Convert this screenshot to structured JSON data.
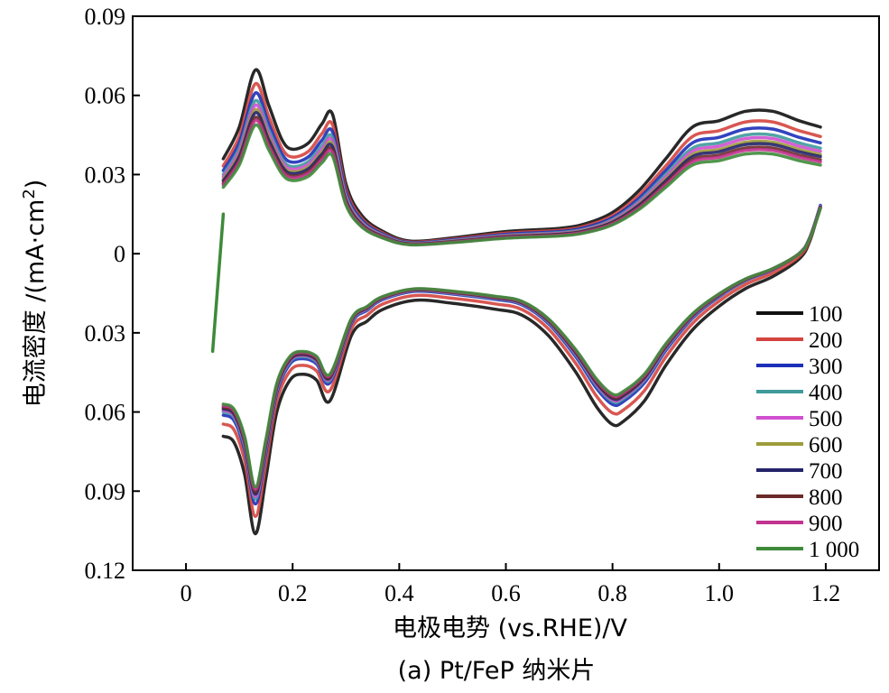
{
  "chart_data": {
    "type": "line",
    "xlabel": "电极电势 (vs.RHE)/V",
    "ylabel_main": "电流密度 /(mA·cm",
    "ylabel_sup": "2",
    "ylabel_close": ")",
    "caption": "(a) Pt/FeP 纳米片",
    "xlim": [
      -0.1,
      1.3
    ],
    "ylim": [
      -0.12,
      0.09
    ],
    "x_ticks": [
      0,
      0.2,
      0.4,
      0.6,
      0.8,
      1.0,
      1.2
    ],
    "x_tick_labels": [
      "0",
      "0.2",
      "0.4",
      "0.6",
      "0.8",
      "1.0",
      "1.2"
    ],
    "y_ticks": [
      0.09,
      0.06,
      0.03,
      0,
      -0.03,
      -0.06,
      -0.09,
      -0.12
    ],
    "y_tick_labels": [
      "0.09",
      "0.06",
      "0.03",
      "0",
      "0.03",
      "0.06",
      "0.09",
      "0.12"
    ],
    "legend_position": "right",
    "grid": false,
    "base_anodic": [
      [
        0.07,
        0.03
      ],
      [
        0.1,
        0.04
      ],
      [
        0.13,
        0.058
      ],
      [
        0.155,
        0.047
      ],
      [
        0.18,
        0.036
      ],
      [
        0.2,
        0.033
      ],
      [
        0.23,
        0.035
      ],
      [
        0.255,
        0.041
      ],
      [
        0.275,
        0.044
      ],
      [
        0.3,
        0.022
      ],
      [
        0.33,
        0.012
      ],
      [
        0.37,
        0.007
      ],
      [
        0.42,
        0.004
      ],
      [
        0.5,
        0.005
      ],
      [
        0.6,
        0.007
      ],
      [
        0.7,
        0.008
      ],
      [
        0.75,
        0.0095
      ],
      [
        0.8,
        0.013
      ],
      [
        0.85,
        0.02
      ],
      [
        0.9,
        0.03
      ],
      [
        0.95,
        0.04
      ],
      [
        1.0,
        0.042
      ],
      [
        1.05,
        0.045
      ],
      [
        1.1,
        0.045
      ],
      [
        1.15,
        0.042
      ],
      [
        1.19,
        0.04
      ]
    ],
    "base_cathodic": [
      [
        1.19,
        0.018
      ],
      [
        1.17,
        0.006
      ],
      [
        1.15,
        0.0
      ],
      [
        1.1,
        -0.006
      ],
      [
        1.05,
        -0.01
      ],
      [
        1.0,
        -0.016
      ],
      [
        0.95,
        -0.024
      ],
      [
        0.9,
        -0.036
      ],
      [
        0.86,
        -0.048
      ],
      [
        0.82,
        -0.055
      ],
      [
        0.8,
        -0.056
      ],
      [
        0.77,
        -0.05
      ],
      [
        0.73,
        -0.038
      ],
      [
        0.68,
        -0.026
      ],
      [
        0.63,
        -0.019
      ],
      [
        0.58,
        -0.017
      ],
      [
        0.5,
        -0.015
      ],
      [
        0.43,
        -0.014
      ],
      [
        0.37,
        -0.017
      ],
      [
        0.34,
        -0.021
      ],
      [
        0.31,
        -0.026
      ],
      [
        0.27,
        -0.048
      ],
      [
        0.245,
        -0.041
      ],
      [
        0.22,
        -0.039
      ],
      [
        0.195,
        -0.041
      ],
      [
        0.17,
        -0.052
      ],
      [
        0.15,
        -0.074
      ],
      [
        0.13,
        -0.093
      ],
      [
        0.11,
        -0.073
      ],
      [
        0.09,
        -0.062
      ],
      [
        0.07,
        -0.06
      ]
    ],
    "initial_segment": [
      [
        0.05,
        -0.037
      ],
      [
        0.07,
        0.015
      ]
    ],
    "series": [
      {
        "name": "100",
        "color": "#111111",
        "anodic_scale": 1.2,
        "anodic_shift": 0.0,
        "cathodic_scale": 1.12,
        "cathodic_shift": -0.002
      },
      {
        "name": "200",
        "color": "#d4453f",
        "anodic_scale": 1.11,
        "anodic_shift": 0.0,
        "cathodic_scale": 1.06,
        "cathodic_shift": -0.001
      },
      {
        "name": "300",
        "color": "#1c2fb8",
        "anodic_scale": 1.05,
        "anodic_shift": 0.0,
        "cathodic_scale": 1.02,
        "cathodic_shift": 0.0
      },
      {
        "name": "400",
        "color": "#3f9a9c",
        "anodic_scale": 1.0,
        "anodic_shift": 0.0,
        "cathodic_scale": 1.0,
        "cathodic_shift": 0.0
      },
      {
        "name": "500",
        "color": "#d050d0",
        "anodic_scale": 0.97,
        "anodic_shift": 0.0,
        "cathodic_scale": 0.99,
        "cathodic_shift": 0.0
      },
      {
        "name": "600",
        "color": "#9c9c3a",
        "anodic_scale": 0.94,
        "anodic_shift": 0.0,
        "cathodic_scale": 0.98,
        "cathodic_shift": 0.0
      },
      {
        "name": "700",
        "color": "#23236b",
        "anodic_scale": 0.92,
        "anodic_shift": 0.0,
        "cathodic_scale": 0.98,
        "cathodic_shift": 0.0
      },
      {
        "name": "800",
        "color": "#6b2a2a",
        "anodic_scale": 0.89,
        "anodic_shift": 0.0,
        "cathodic_scale": 0.97,
        "cathodic_shift": 0.0
      },
      {
        "name": "900",
        "color": "#c2338f",
        "anodic_scale": 0.87,
        "anodic_shift": 0.0,
        "cathodic_scale": 0.96,
        "cathodic_shift": 0.0
      },
      {
        "name": "1 000",
        "color": "#3e8a3a",
        "anodic_scale": 0.84,
        "anodic_shift": 0.0,
        "cathodic_scale": 0.95,
        "cathodic_shift": 0.0
      }
    ]
  }
}
